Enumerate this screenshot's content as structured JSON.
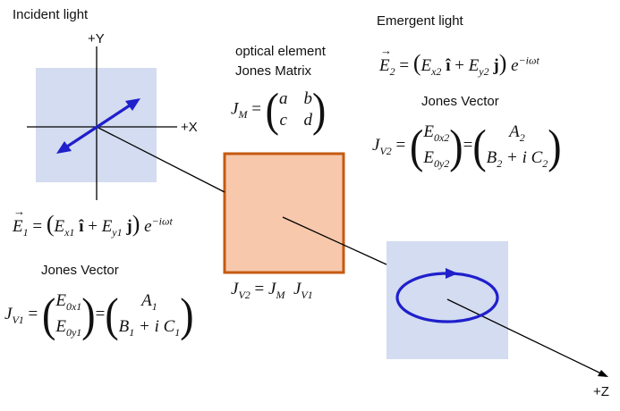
{
  "labels": {
    "incident": "Incident light",
    "emergent": "Emergent light",
    "optical_element": "optical element",
    "jones_matrix": "Jones Matrix",
    "jones_vector_left": "Jones Vector",
    "jones_vector_right": "Jones Vector",
    "axis_y": "+Y",
    "axis_x": "+X",
    "axis_z": "+Z"
  },
  "equations": {
    "E1": {
      "lhs": "E",
      "lhs_sub": "1",
      "ex": "E",
      "ex_sub": "x1",
      "i": "î",
      "ey": "E",
      "ey_sub": "y1",
      "j": "j",
      "exp_base": "e",
      "exp": "−iωt"
    },
    "E2": {
      "lhs": "E",
      "lhs_sub": "2",
      "ex": "E",
      "ex_sub": "x2",
      "i": "î",
      "ey": "E",
      "ey_sub": "y2",
      "j": "j",
      "exp_base": "e",
      "exp": "−iωt"
    },
    "JM": {
      "lhs": "J",
      "lhs_sub": "M",
      "a": "a",
      "b": "b",
      "c": "c",
      "d": "d"
    },
    "JV1": {
      "lhs": "J",
      "lhs_sub": "V1",
      "top": "E",
      "top_sub": "0x1",
      "bot": "E",
      "bot_sub": "0y1",
      "rtop": "A",
      "rtop_sub": "1",
      "rbot": "B",
      "rbot_sub": "1",
      "rbot_mid": " + i C",
      "rbot_sub2": "1"
    },
    "JV2": {
      "lhs": "J",
      "lhs_sub": "V2",
      "top": "E",
      "top_sub": "0x2",
      "bot": "E",
      "bot_sub": "0y2",
      "rtop": "A",
      "rtop_sub": "2",
      "rbot": "B",
      "rbot_sub": "2",
      "rbot_mid": " + i C",
      "rbot_sub2": "2"
    },
    "product": {
      "lhs": "J",
      "lhs_sub": "V2",
      "j1": "J",
      "j1_sub": "M",
      "j2": "J",
      "j2_sub": "V1"
    }
  },
  "colors": {
    "panel": "#d3dcf0",
    "element_fill": "#f7c8ab",
    "element_border": "#c55a11",
    "arrow": "#1f1fcc",
    "line": "#000000"
  }
}
